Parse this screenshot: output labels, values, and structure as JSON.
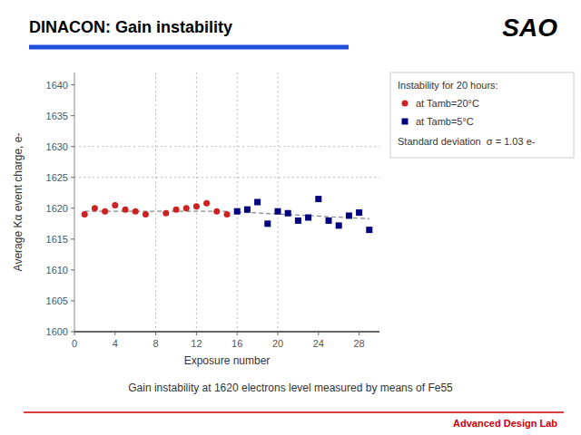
{
  "chart_data": {
    "type": "scatter",
    "title": "DINACON: Gain instability",
    "logo": "SAO",
    "subtitle": "Gain instability at 1620 electrons level measured by means of Fe55",
    "footer": "Advanced Design Lab",
    "xlabel": "Exposure number",
    "ylabel": "Average Kα event charge, e-",
    "xlim": [
      0,
      30
    ],
    "ylim": [
      1600,
      1642
    ],
    "xticks": [
      0,
      4,
      8,
      12,
      16,
      20,
      24,
      28
    ],
    "yticks": [
      1600,
      1605,
      1610,
      1615,
      1620,
      1625,
      1630,
      1635,
      1640
    ],
    "grid": false,
    "hlines": [
      1625,
      1630
    ],
    "vlines": [
      8,
      12,
      16,
      20
    ],
    "legend": "upper right",
    "legend_title": "Instability for 20 hours:",
    "legend_note": "Standard deviation  σ = 1.03 e-",
    "series": [
      {
        "name": "at Tamb=20°C",
        "type": "scatter",
        "marker": "circle",
        "color": "#cc2222",
        "x": [
          1,
          2,
          3,
          4,
          5,
          6,
          7,
          9,
          10,
          11,
          12,
          13,
          14,
          15
        ],
        "values": [
          1619.0,
          1620.0,
          1619.5,
          1620.5,
          1619.8,
          1619.5,
          1619.0,
          1619.2,
          1619.8,
          1620.0,
          1620.3,
          1620.8,
          1619.5,
          1619.0
        ]
      },
      {
        "name": "at Tamb=5°C",
        "type": "scatter",
        "marker": "square",
        "color": "#000080",
        "x": [
          16,
          17,
          18,
          19,
          20,
          21,
          22,
          23,
          24,
          25,
          26,
          27,
          28,
          29
        ],
        "values": [
          1619.5,
          1619.8,
          1621.0,
          1617.5,
          1619.5,
          1619.2,
          1618.0,
          1618.5,
          1621.5,
          1618.0,
          1617.2,
          1618.8,
          1619.3,
          1616.5
        ]
      },
      {
        "type": "line",
        "line_style": "dashed",
        "color": "#888888",
        "x": [
          1,
          15
        ],
        "values": [
          1619.5,
          1619.5
        ]
      },
      {
        "type": "line",
        "line_style": "dashed",
        "color": "#888888",
        "x": [
          16,
          29
        ],
        "values": [
          1619.4,
          1618.3
        ]
      }
    ]
  }
}
